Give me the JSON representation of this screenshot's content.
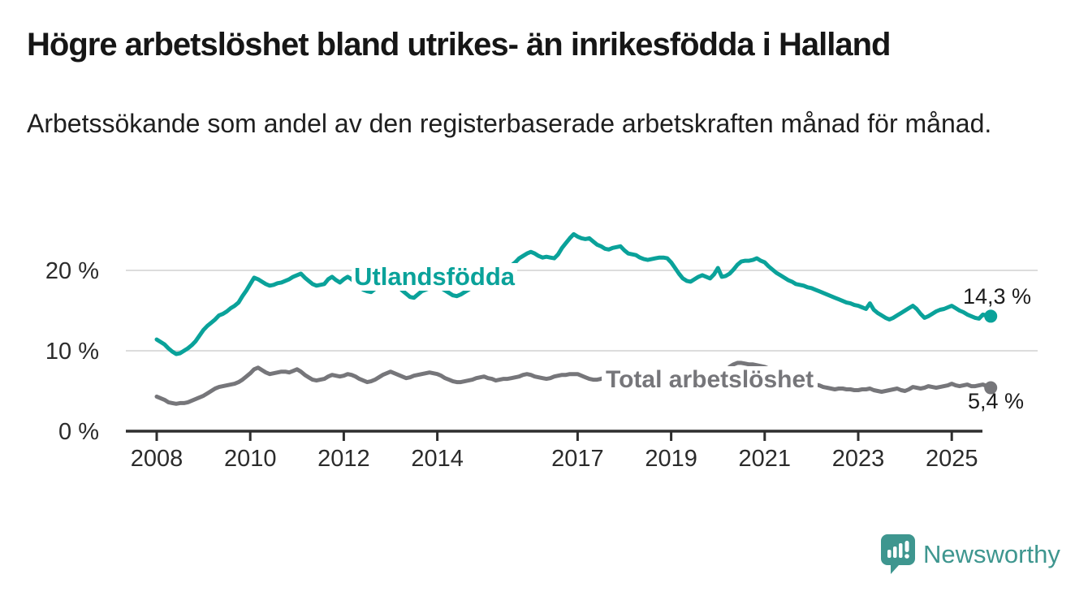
{
  "header": {
    "title": "Högre arbetslöshet bland utrikes- än inrikesfödda i Halland",
    "subtitle": "Arbetssökande som andel av den registerbaserade arbetskraften månad för månad."
  },
  "chart_data": {
    "type": "line",
    "title": "Högre arbetslöshet bland utrikes- än inrikesfödda i Halland",
    "subtitle": "Arbetssökande som andel av den registerbaserade arbetskraften månad för månad.",
    "x_unit": "month",
    "start_year": 2008,
    "end_point": "2025-11",
    "grid": "horizontal",
    "legend_position": "inline-labels",
    "ylim": [
      0,
      26
    ],
    "x_ticks": [
      2008,
      2010,
      2012,
      2014,
      2017,
      2019,
      2021,
      2023,
      2025
    ],
    "y_ticks": [
      {
        "value": 0,
        "label": "0 %"
      },
      {
        "value": 10,
        "label": "10 %"
      },
      {
        "value": 20,
        "label": "20 %"
      }
    ],
    "series": [
      {
        "name": "Total arbetslöshet",
        "color": "#76767a",
        "end_label": "5,4 %",
        "end_value": 5.4,
        "values": [
          4.3,
          4.1,
          3.9,
          3.6,
          3.5,
          3.4,
          3.5,
          3.5,
          3.6,
          3.8,
          4.0,
          4.2,
          4.4,
          4.7,
          5.0,
          5.3,
          5.5,
          5.6,
          5.7,
          5.8,
          5.9,
          6.1,
          6.4,
          6.8,
          7.2,
          7.7,
          7.9,
          7.6,
          7.3,
          7.1,
          7.2,
          7.3,
          7.4,
          7.4,
          7.3,
          7.5,
          7.7,
          7.4,
          7.0,
          6.7,
          6.4,
          6.3,
          6.4,
          6.5,
          6.8,
          7.0,
          6.9,
          6.8,
          6.9,
          7.1,
          7.0,
          6.8,
          6.5,
          6.3,
          6.1,
          6.2,
          6.4,
          6.7,
          7.0,
          7.2,
          7.4,
          7.2,
          7.0,
          6.8,
          6.6,
          6.7,
          6.9,
          7.0,
          7.1,
          7.2,
          7.3,
          7.2,
          7.1,
          6.9,
          6.6,
          6.4,
          6.2,
          6.1,
          6.1,
          6.2,
          6.3,
          6.4,
          6.6,
          6.7,
          6.8,
          6.6,
          6.5,
          6.3,
          6.4,
          6.5,
          6.5,
          6.6,
          6.7,
          6.8,
          7.0,
          7.1,
          7.0,
          6.8,
          6.7,
          6.6,
          6.5,
          6.6,
          6.8,
          6.9,
          7.0,
          7.0,
          7.1,
          7.1,
          7.1,
          6.9,
          6.7,
          6.5,
          6.4,
          6.4,
          6.5,
          6.7,
          6.9,
          7.0,
          7.0,
          7.1,
          7.0,
          6.8,
          6.6,
          6.5,
          6.4,
          6.5,
          6.6,
          6.7,
          6.8,
          6.8,
          6.9,
          6.9,
          6.9,
          6.7,
          6.5,
          6.4,
          6.3,
          6.4,
          6.5,
          6.6,
          6.6,
          6.7,
          6.8,
          7.0,
          7.1,
          7.2,
          7.5,
          8.0,
          8.3,
          8.5,
          8.5,
          8.4,
          8.3,
          8.3,
          8.2,
          8.1,
          8.0,
          7.8,
          7.6,
          7.4,
          7.2,
          7.0,
          6.9,
          6.7,
          6.5,
          6.4,
          6.2,
          6.1,
          5.9,
          5.8,
          5.7,
          5.5,
          5.4,
          5.3,
          5.2,
          5.3,
          5.3,
          5.2,
          5.2,
          5.1,
          5.1,
          5.2,
          5.2,
          5.3,
          5.1,
          5.0,
          4.9,
          5.0,
          5.1,
          5.2,
          5.3,
          5.1,
          5.0,
          5.2,
          5.5,
          5.4,
          5.3,
          5.4,
          5.6,
          5.5,
          5.4,
          5.5,
          5.6,
          5.7,
          5.9,
          5.7,
          5.6,
          5.7,
          5.8,
          5.6,
          5.6,
          5.7,
          5.8,
          5.6,
          5.4
        ]
      },
      {
        "name": "Utlandsfödda",
        "color": "#0aa29a",
        "end_label": "14,3 %",
        "end_value": 14.3,
        "values": [
          11.4,
          11.1,
          10.8,
          10.3,
          9.9,
          9.6,
          9.7,
          10.0,
          10.3,
          10.7,
          11.2,
          11.9,
          12.6,
          13.1,
          13.5,
          13.9,
          14.4,
          14.6,
          14.9,
          15.3,
          15.6,
          16.0,
          16.8,
          17.5,
          18.3,
          19.1,
          18.9,
          18.6,
          18.3,
          18.1,
          18.2,
          18.4,
          18.5,
          18.7,
          18.9,
          19.2,
          19.4,
          19.6,
          19.1,
          18.7,
          18.3,
          18.1,
          18.2,
          18.3,
          18.9,
          19.2,
          18.8,
          18.5,
          18.9,
          19.2,
          18.9,
          18.4,
          17.9,
          17.6,
          17.4,
          17.3,
          17.7,
          17.9,
          18.2,
          18.5,
          18.8,
          18.5,
          18.0,
          17.5,
          17.1,
          16.7,
          16.6,
          17.0,
          17.4,
          17.6,
          17.8,
          17.9,
          18.0,
          17.8,
          17.5,
          17.2,
          16.9,
          16.8,
          17.0,
          17.3,
          17.6,
          17.9,
          18.2,
          18.5,
          18.8,
          19.0,
          19.2,
          19.4,
          19.7,
          20.0,
          20.3,
          20.6,
          21.0,
          21.5,
          21.8,
          22.1,
          22.3,
          22.1,
          21.8,
          21.6,
          21.7,
          21.6,
          21.5,
          22.0,
          22.8,
          23.4,
          24.0,
          24.5,
          24.2,
          24.0,
          23.9,
          24.0,
          23.6,
          23.2,
          23.0,
          22.7,
          22.6,
          22.8,
          22.9,
          23.0,
          22.5,
          22.1,
          22.0,
          21.9,
          21.6,
          21.4,
          21.3,
          21.4,
          21.5,
          21.6,
          21.6,
          21.5,
          21.0,
          20.3,
          19.6,
          19.0,
          18.7,
          18.6,
          18.9,
          19.2,
          19.4,
          19.2,
          19.0,
          19.5,
          20.3,
          19.2,
          19.3,
          19.6,
          20.1,
          20.7,
          21.1,
          21.2,
          21.2,
          21.3,
          21.5,
          21.2,
          21.0,
          20.5,
          20.1,
          19.7,
          19.4,
          19.1,
          18.8,
          18.6,
          18.3,
          18.2,
          18.1,
          17.9,
          17.8,
          17.6,
          17.4,
          17.2,
          17.0,
          16.8,
          16.6,
          16.4,
          16.2,
          16.0,
          15.9,
          15.7,
          15.6,
          15.4,
          15.2,
          15.9,
          15.1,
          14.7,
          14.4,
          14.1,
          13.9,
          14.1,
          14.4,
          14.7,
          15.0,
          15.3,
          15.6,
          15.2,
          14.6,
          14.1,
          14.3,
          14.6,
          14.9,
          15.1,
          15.2,
          15.4,
          15.6,
          15.3,
          15.0,
          14.8,
          14.5,
          14.3,
          14.1,
          14.0,
          14.5,
          14.4,
          14.3
        ]
      }
    ]
  },
  "footer": {
    "brand": "Newsworthy",
    "logo_color": "#3e968f",
    "logo_icon": "newsworthy-speech-bubble-bar-chart-icon"
  },
  "colors": {
    "utlandsfodda_line": "#0aa29a",
    "total_line": "#76767a",
    "gridline": "#dcdcdc",
    "axis": "#2e2e2e",
    "text": "#161616"
  }
}
